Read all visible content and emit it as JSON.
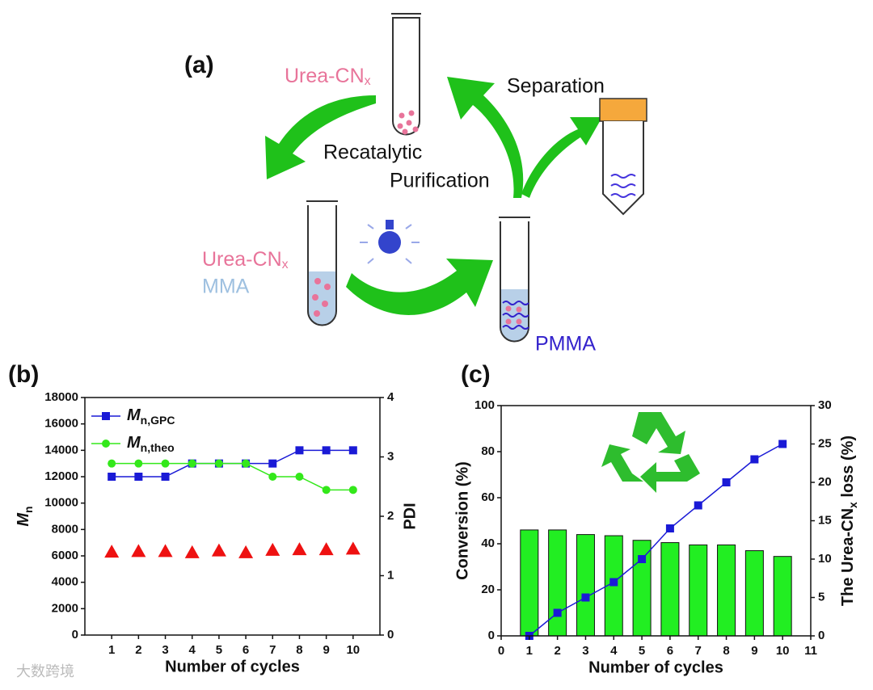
{
  "diagram": {
    "panel_label": "(a)",
    "top_catalyst": {
      "text": "Urea-CN",
      "sub": "x"
    },
    "recatalytic": "Recatalytic",
    "purification": "Purification",
    "separation": "Separation",
    "left_catalyst": {
      "text": "Urea-CN",
      "sub": "x"
    },
    "monomer": "MMA",
    "polymer": "PMMA"
  },
  "watermark": "大数跨境",
  "chart_data": [
    {
      "type": "line",
      "panel_label": "(b)",
      "xlabel": "Number of cycles",
      "ylabel": {
        "text": "M",
        "sub": "n"
      },
      "y2label": "PDI",
      "x": [
        1,
        2,
        3,
        4,
        5,
        6,
        7,
        8,
        9,
        10
      ],
      "xlim": [
        0,
        11
      ],
      "xticks": [
        1,
        2,
        3,
        4,
        5,
        6,
        7,
        8,
        9,
        10
      ],
      "ylim": [
        0,
        18000
      ],
      "yticks": [
        0,
        2000,
        4000,
        6000,
        8000,
        10000,
        12000,
        14000,
        16000,
        18000
      ],
      "y2lim": [
        0,
        4
      ],
      "y2ticks": [
        0,
        1,
        2,
        3,
        4
      ],
      "legend": "upper left",
      "series": [
        {
          "name": {
            "text": "M",
            "sub": "n,GPC"
          },
          "color": "#1a1ad6",
          "marker": "square",
          "kind": "line",
          "values": [
            12000,
            12000,
            12000,
            13000,
            13000,
            13000,
            13000,
            14000,
            14000,
            14000
          ]
        },
        {
          "name": {
            "text": "M",
            "sub": "n,theo"
          },
          "color": "#33e81a",
          "marker": "circle",
          "kind": "line",
          "values": [
            13000,
            13000,
            13000,
            13000,
            13000,
            13000,
            12000,
            12000,
            11000,
            11000
          ]
        },
        {
          "color": "#ee1111",
          "marker": "triangle",
          "kind": "points",
          "axis": "y2",
          "values": [
            1.4,
            1.41,
            1.41,
            1.39,
            1.42,
            1.39,
            1.43,
            1.44,
            1.44,
            1.45
          ]
        }
      ]
    },
    {
      "type": "bar",
      "panel_label": "(c)",
      "xlabel": "Number of cycles",
      "ylabel": "Conversion (%)",
      "y2label": {
        "text": "The Urea-CN",
        "sub": "x",
        "tail": " loss (%)"
      },
      "x": [
        1,
        2,
        3,
        4,
        5,
        6,
        7,
        8,
        9,
        10
      ],
      "xlim": [
        0,
        11
      ],
      "xticks": [
        0,
        1,
        2,
        3,
        4,
        5,
        6,
        7,
        8,
        9,
        10,
        11
      ],
      "ylim": [
        0,
        100
      ],
      "yticks": [
        0,
        20,
        40,
        60,
        80,
        100
      ],
      "y2lim": [
        0,
        30
      ],
      "y2ticks": [
        0,
        5,
        10,
        15,
        20,
        25,
        30
      ],
      "series": [
        {
          "color": "#22ee22",
          "kind": "bar",
          "values": [
            46,
            46,
            44,
            43.5,
            41.5,
            40.5,
            39.5,
            39.5,
            37,
            34.5
          ]
        },
        {
          "color": "#1a1ad6",
          "marker": "square",
          "kind": "line",
          "axis": "y2",
          "values": [
            0,
            3,
            5,
            7,
            10,
            14,
            17,
            20,
            23,
            25
          ]
        }
      ]
    }
  ]
}
